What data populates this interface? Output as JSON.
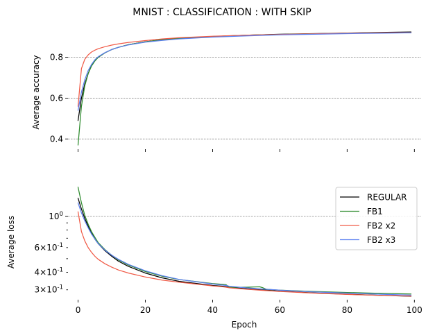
{
  "title": "MNIST : CLASSIFICATION : WITH SKIP",
  "chart_data": [
    {
      "type": "line",
      "ylabel": "Average accuracy",
      "xlabel": "",
      "xlim": [
        -3,
        102
      ],
      "ylim": [
        0.35,
        0.955
      ],
      "grid": "horizontal dashed at y ticks",
      "xticks": [
        0,
        20,
        40,
        60,
        80,
        100
      ],
      "yticks": [
        0.4,
        0.6,
        0.8
      ],
      "ytick_labels": [
        "0.4",
        "0.6",
        "0.8"
      ],
      "x": [
        0,
        1,
        2,
        3,
        4,
        5,
        6,
        8,
        10,
        12,
        15,
        20,
        25,
        30,
        40,
        50,
        60,
        70,
        80,
        90,
        99
      ],
      "series": [
        {
          "name": "REGULAR",
          "color": "#000000",
          "values": [
            0.49,
            0.6,
            0.67,
            0.72,
            0.76,
            0.785,
            0.8,
            0.822,
            0.838,
            0.849,
            0.862,
            0.876,
            0.886,
            0.893,
            0.902,
            0.908,
            0.913,
            0.916,
            0.919,
            0.922,
            0.924
          ]
        },
        {
          "name": "FB1",
          "color": "#2e8b2e",
          "values": [
            0.37,
            0.56,
            0.66,
            0.72,
            0.757,
            0.782,
            0.8,
            0.822,
            0.838,
            0.849,
            0.862,
            0.876,
            0.886,
            0.893,
            0.902,
            0.908,
            0.912,
            0.915,
            0.918,
            0.92,
            0.921
          ]
        },
        {
          "name": "FB2 x2",
          "color": "#f05a46",
          "values": [
            0.56,
            0.745,
            0.79,
            0.812,
            0.826,
            0.835,
            0.842,
            0.852,
            0.86,
            0.866,
            0.873,
            0.882,
            0.89,
            0.896,
            0.903,
            0.908,
            0.912,
            0.915,
            0.918,
            0.92,
            0.921
          ]
        },
        {
          "name": "FB2 x3",
          "color": "#5b7ff0",
          "values": [
            0.54,
            0.63,
            0.69,
            0.735,
            0.765,
            0.788,
            0.803,
            0.823,
            0.838,
            0.849,
            0.861,
            0.874,
            0.883,
            0.89,
            0.899,
            0.905,
            0.91,
            0.913,
            0.916,
            0.918,
            0.92
          ]
        }
      ]
    },
    {
      "type": "line",
      "ylabel": "Average loss",
      "xlabel": "Epoch",
      "yscale": "log",
      "xlim": [
        -3,
        102
      ],
      "ylim": [
        0.255,
        1.85
      ],
      "grid": "horizontal dashed at 1.0",
      "xticks": [
        0,
        20,
        40,
        60,
        80,
        100
      ],
      "xtick_labels": [
        "0",
        "20",
        "40",
        "60",
        "80",
        "100"
      ],
      "yticks_major": [
        1.0
      ],
      "ytick_major_labels": [
        "10^0"
      ],
      "yticks_minor": [
        0.3,
        0.4,
        0.5,
        0.6,
        0.7,
        0.8,
        0.9
      ],
      "ytick_minor_labels": [
        "3×10^-1",
        "4×10^-1",
        "",
        "6×10^-1",
        "",
        "",
        ""
      ],
      "legend_position": "top-right",
      "x": [
        0,
        1,
        2,
        3,
        4,
        5,
        6,
        8,
        10,
        12,
        15,
        20,
        25,
        30,
        40,
        43,
        44,
        45,
        50,
        54,
        55,
        56,
        60,
        70,
        80,
        90,
        99
      ],
      "series": [
        {
          "name": "REGULAR",
          "color": "#000000",
          "values": [
            1.35,
            1.13,
            0.97,
            0.85,
            0.76,
            0.69,
            0.64,
            0.57,
            0.52,
            0.48,
            0.44,
            0.395,
            0.365,
            0.345,
            0.322,
            0.318,
            0.316,
            0.312,
            0.305,
            0.3,
            0.299,
            0.298,
            0.293,
            0.285,
            0.279,
            0.274,
            0.27
          ]
        },
        {
          "name": "FB1",
          "color": "#2e8b2e",
          "values": [
            1.62,
            1.25,
            1.02,
            0.88,
            0.78,
            0.71,
            0.65,
            0.58,
            0.53,
            0.49,
            0.45,
            0.405,
            0.375,
            0.355,
            0.332,
            0.328,
            0.326,
            0.312,
            0.313,
            0.315,
            0.31,
            0.302,
            0.298,
            0.292,
            0.287,
            0.283,
            0.28
          ]
        },
        {
          "name": "FB2 x2",
          "color": "#f05a46",
          "values": [
            1.08,
            0.78,
            0.67,
            0.6,
            0.555,
            0.52,
            0.495,
            0.46,
            0.435,
            0.415,
            0.395,
            0.37,
            0.352,
            0.34,
            0.32,
            0.315,
            0.313,
            0.31,
            0.303,
            0.298,
            0.297,
            0.296,
            0.292,
            0.284,
            0.278,
            0.274,
            0.271
          ]
        },
        {
          "name": "FB2 x3",
          "color": "#5b7ff0",
          "values": [
            1.25,
            1.06,
            0.93,
            0.83,
            0.75,
            0.69,
            0.64,
            0.575,
            0.53,
            0.495,
            0.455,
            0.41,
            0.378,
            0.356,
            0.33,
            0.324,
            0.322,
            0.318,
            0.31,
            0.305,
            0.304,
            0.303,
            0.298,
            0.29,
            0.284,
            0.279,
            0.275
          ]
        }
      ]
    }
  ]
}
